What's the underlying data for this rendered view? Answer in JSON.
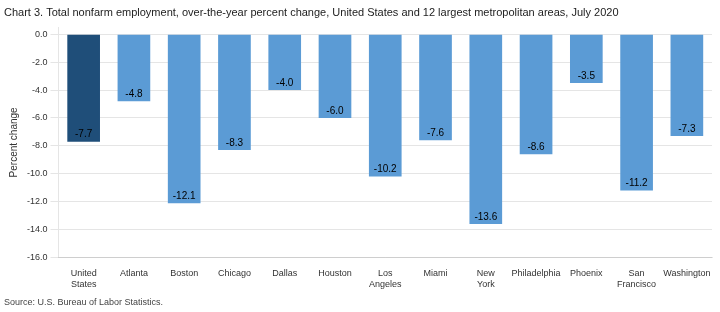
{
  "chart_data": {
    "type": "bar",
    "title": "Chart 3. Total nonfarm employment, over-the-year percent change, United States and 12 largest metropolitan areas, July 2020",
    "ylabel": "Percent change",
    "source": "Source: U.S. Bureau of Labor Statistics.",
    "categories": [
      "United\nStates",
      "Atlanta",
      "Boston",
      "Chicago",
      "Dallas",
      "Houston",
      "Los\nAngeles",
      "Miami",
      "New\nYork",
      "Philadelphia",
      "Phoenix",
      "San\nFrancisco",
      "Washington"
    ],
    "values": [
      -7.7,
      -4.8,
      -12.1,
      -8.3,
      -4.0,
      -6.0,
      -10.2,
      -7.6,
      -13.6,
      -8.6,
      -3.5,
      -11.2,
      -7.3
    ],
    "value_labels": [
      "-7.7",
      "-4.8",
      "-12.1",
      "-8.3",
      "-4.0",
      "-6.0",
      "-10.2",
      "-7.6",
      "-13.6",
      "-8.6",
      "-3.5",
      "-11.2",
      "-7.3"
    ],
    "colors": [
      "#1f4e79",
      "#5b9bd5",
      "#5b9bd5",
      "#5b9bd5",
      "#5b9bd5",
      "#5b9bd5",
      "#5b9bd5",
      "#5b9bd5",
      "#5b9bd5",
      "#5b9bd5",
      "#5b9bd5",
      "#5b9bd5",
      "#5b9bd5"
    ],
    "ylim": [
      -16.0,
      0.5
    ],
    "yticks": [
      {
        "value": 0.0,
        "label": "0.0"
      },
      {
        "value": -2.0,
        "label": "-2.0"
      },
      {
        "value": -4.0,
        "label": "-4.0"
      },
      {
        "value": -6.0,
        "label": "-6.0"
      },
      {
        "value": -8.0,
        "label": "-8.0"
      },
      {
        "value": -10.0,
        "label": "-10.0"
      },
      {
        "value": -12.0,
        "label": "-12.0"
      },
      {
        "value": -14.0,
        "label": "-14.0"
      },
      {
        "value": -16.0,
        "label": "-16.0"
      }
    ],
    "grid": true,
    "data_labels": true
  }
}
